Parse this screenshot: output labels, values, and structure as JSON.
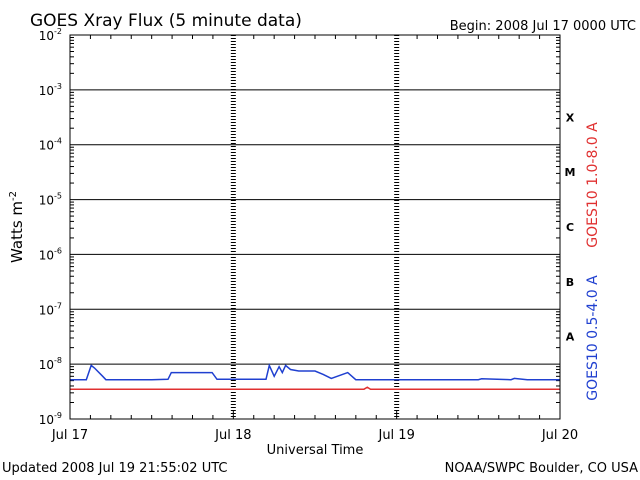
{
  "chart_data": {
    "type": "line",
    "title": "GOES Xray Flux (5 minute data)",
    "begin_label": "Begin:  2008 Jul 17 0000 UTC",
    "xlabel": "Universal Time",
    "ylabel": "Watts m",
    "ylabel_sup": "-2",
    "footer_left": "Updated 2008 Jul 19 21:55:02 UTC",
    "footer_right": "NOAA/SWPC Boulder, CO USA",
    "yscale": "log",
    "ylim": [
      "1e-9",
      "1e-2"
    ],
    "xlim": [
      0,
      3
    ],
    "x_ticks": [
      {
        "x": 0,
        "label": "Jul 17"
      },
      {
        "x": 1,
        "label": "Jul 18"
      },
      {
        "x": 2,
        "label": "Jul 19"
      },
      {
        "x": 3,
        "label": "Jul 20"
      }
    ],
    "y_ticks": [
      {
        "exp": -2,
        "base": "10",
        "sup": "-2"
      },
      {
        "exp": -3,
        "base": "10",
        "sup": "-3"
      },
      {
        "exp": -4,
        "base": "10",
        "sup": "-4"
      },
      {
        "exp": -5,
        "base": "10",
        "sup": "-5"
      },
      {
        "exp": -6,
        "base": "10",
        "sup": "-6"
      },
      {
        "exp": -7,
        "base": "10",
        "sup": "-7"
      },
      {
        "exp": -8,
        "base": "10",
        "sup": "-8"
      },
      {
        "exp": -9,
        "base": "10",
        "sup": "-9"
      }
    ],
    "flare_classes": [
      {
        "label": "X",
        "exp": -3.5
      },
      {
        "label": "M",
        "exp": -4.5
      },
      {
        "label": "C",
        "exp": -5.5
      },
      {
        "label": "B",
        "exp": -6.5
      },
      {
        "label": "A",
        "exp": -7.5
      }
    ],
    "colors": {
      "long": "#e03030",
      "short": "#2040d0"
    },
    "series": [
      {
        "name": "GOES10 1.0-8.0 A",
        "color": "#e03030",
        "x": [
          0.0,
          1.8,
          1.82,
          1.84,
          3.0
        ],
        "y": [
          3.5e-09,
          3.5e-09,
          3.8e-09,
          3.5e-09,
          3.5e-09
        ]
      },
      {
        "name": "GOES10 0.5-4.0 A",
        "color": "#2040d0",
        "x": [
          0.0,
          0.1,
          0.13,
          0.15,
          0.2,
          0.22,
          0.25,
          0.3,
          0.5,
          0.6,
          0.62,
          0.87,
          0.9,
          1.2,
          1.22,
          1.25,
          1.28,
          1.3,
          1.32,
          1.35,
          1.4,
          1.5,
          1.55,
          1.6,
          1.7,
          1.75,
          2.0,
          2.5,
          2.52,
          2.7,
          2.72,
          2.8,
          2.82,
          3.0
        ],
        "y": [
          5.2e-09,
          5.2e-09,
          9.5e-09,
          8.5e-09,
          6e-09,
          5.2e-09,
          5.2e-09,
          5.2e-09,
          5.2e-09,
          5.3e-09,
          7e-09,
          7e-09,
          5.3e-09,
          5.3e-09,
          9.5e-09,
          6e-09,
          9e-09,
          7e-09,
          9.5e-09,
          8e-09,
          7.5e-09,
          7.5e-09,
          6.5e-09,
          5.5e-09,
          7e-09,
          5.2e-09,
          5.2e-09,
          5.2e-09,
          5.4e-09,
          5.2e-09,
          5.5e-09,
          5.2e-09,
          5.2e-09,
          5.2e-09
        ]
      }
    ]
  }
}
